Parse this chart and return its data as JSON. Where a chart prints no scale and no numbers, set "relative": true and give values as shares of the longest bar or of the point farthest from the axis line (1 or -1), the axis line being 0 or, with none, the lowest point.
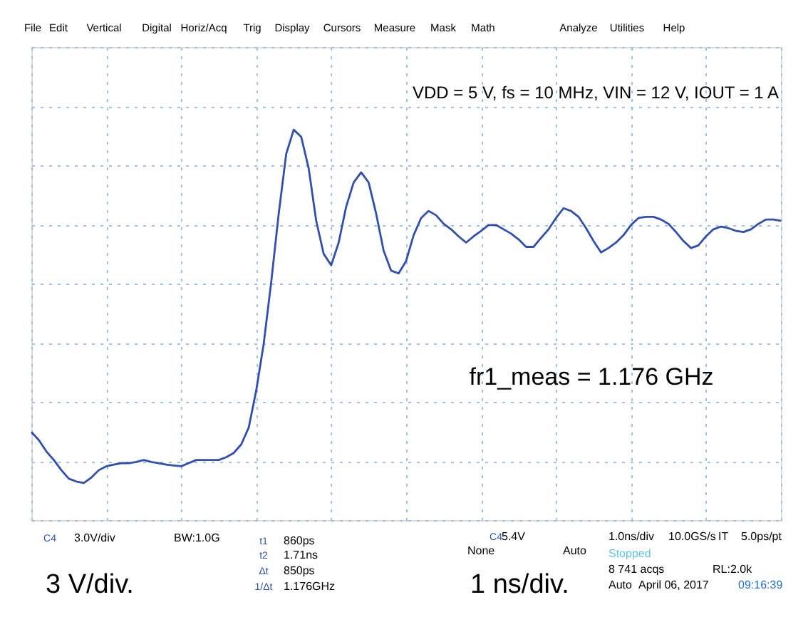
{
  "chart_data": {
    "type": "line",
    "relative": true,
    "grid": true,
    "line_style": "solid",
    "categories": [
      null,
      null,
      null,
      null,
      null,
      null,
      null,
      null,
      null,
      null,
      null,
      null,
      null,
      null,
      null,
      null,
      null,
      null,
      null,
      null,
      null,
      null,
      null,
      null,
      null,
      null,
      null,
      null,
      null,
      null,
      null,
      null,
      null,
      null,
      null,
      null,
      null,
      null,
      null,
      null,
      null,
      null,
      null,
      null,
      null,
      null,
      null,
      null,
      null,
      null,
      null,
      null,
      null,
      null,
      null,
      null,
      null,
      null,
      null,
      null,
      null,
      null,
      null,
      null,
      null,
      null,
      null,
      null,
      null,
      null,
      null,
      null,
      null,
      null,
      null,
      null,
      null,
      null,
      null,
      null,
      null,
      null,
      null,
      null,
      null,
      null,
      null,
      null,
      null,
      null,
      null,
      null,
      null,
      null,
      null,
      null,
      null,
      null,
      null,
      null,
      null
    ],
    "series": [
      {
        "color": "#2f4fb5",
        "values": [
          0.226,
          0.205,
          0.176,
          0.154,
          0.128,
          0.106,
          0.099,
          0.095,
          0.109,
          0.128,
          0.138,
          0.142,
          0.146,
          0.146,
          0.149,
          0.154,
          0.149,
          0.146,
          0.142,
          0.14,
          0.138,
          0.146,
          0.154,
          0.154,
          0.154,
          0.154,
          0.161,
          0.172,
          0.194,
          0.237,
          0.332,
          0.452,
          0.61,
          0.785,
          0.938,
          1,
          0.982,
          0.901,
          0.767,
          0.682,
          0.653,
          0.711,
          0.803,
          0.865,
          0.891,
          0.865,
          0.785,
          0.69,
          0.639,
          0.632,
          0.664,
          0.73,
          0.774,
          0.792,
          0.781,
          0.759,
          0.745,
          0.727,
          0.711,
          0.727,
          0.741,
          0.756,
          0.756,
          0.745,
          0.734,
          0.719,
          0.7,
          0.7,
          0.723,
          0.745,
          0.774,
          0.799,
          0.792,
          0.777,
          0.748,
          0.715,
          0.686,
          0.697,
          0.711,
          0.73,
          0.756,
          0.774,
          0.777,
          0.777,
          0.77,
          0.759,
          0.738,
          0.715,
          0.697,
          0.704,
          0.727,
          0.745,
          0.752,
          0.748,
          0.741,
          0.738,
          0.745,
          0.759,
          0.77,
          0.77,
          0.767
        ]
      }
    ],
    "annotations": [
      "VDD = 5 V, fs = 10 MHz, VIN = 12 V, IOUT = 1 A",
      "fr1_meas = 1.176 GHz",
      "3 V/div.",
      "1 ns/div.",
      "3.0V/div",
      "BW:1.0G",
      "860ps",
      "1.71ns",
      "850ps",
      "1.176GHz",
      "5.4V",
      "None",
      "Auto",
      "1.0ns/div",
      "10.0GS/s",
      "IT",
      "5.0ps/pt",
      "Stopped",
      "8 741 acqs",
      "RL:2.0k",
      "Auto",
      "April 06, 2017",
      "09:16:39",
      "File",
      "Edit",
      "Vertical",
      "Digital",
      "Horiz/Acq",
      "Trig",
      "Display",
      "Cursors",
      "Measure",
      "Mask",
      "Math",
      "Analyze",
      "Utilities",
      "Help",
      "C4",
      "t1",
      "t2",
      "Δt",
      "1/Δt",
      "C4"
    ]
  }
}
